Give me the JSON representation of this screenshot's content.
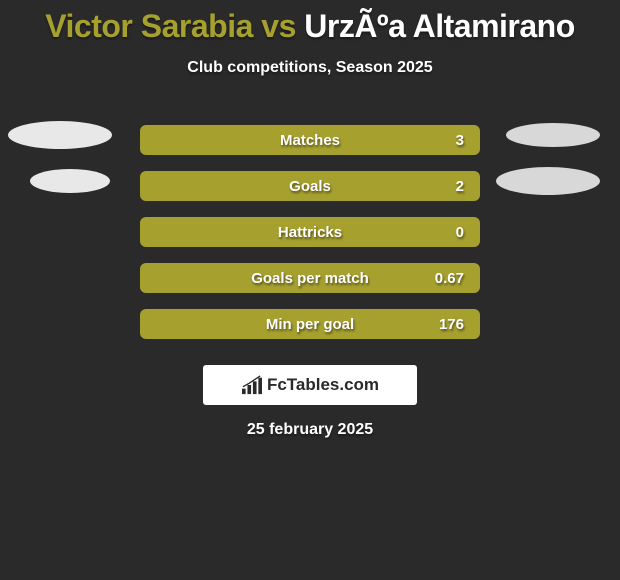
{
  "header": {
    "player1": "Victor Sarabia",
    "vs": " vs ",
    "player2": "UrzÃºa Altamirano",
    "player1_color": "#a6a02f",
    "player2_color": "#ffffff"
  },
  "subtitle": "Club competitions, Season 2025",
  "colors": {
    "background": "#2a2a2a",
    "bar_fill": "#a6a02f",
    "bar_empty": "#3a3a3a",
    "ellipse_left": "#e8e8e8",
    "ellipse_right": "#d8d8d8",
    "text": "#ffffff"
  },
  "stats": [
    {
      "label": "Matches",
      "value": "3",
      "show_ellipse": true,
      "fill_pct": 100
    },
    {
      "label": "Goals",
      "value": "2",
      "show_ellipse": true,
      "fill_pct": 100,
      "ellipse_left_smaller": true
    },
    {
      "label": "Hattricks",
      "value": "0",
      "show_ellipse": false,
      "fill_pct": 100
    },
    {
      "label": "Goals per match",
      "value": "0.67",
      "show_ellipse": false,
      "fill_pct": 100
    },
    {
      "label": "Min per goal",
      "value": "176",
      "show_ellipse": false,
      "fill_pct": 100
    }
  ],
  "logo": {
    "text": "FcTables.com"
  },
  "date": "25 february 2025"
}
